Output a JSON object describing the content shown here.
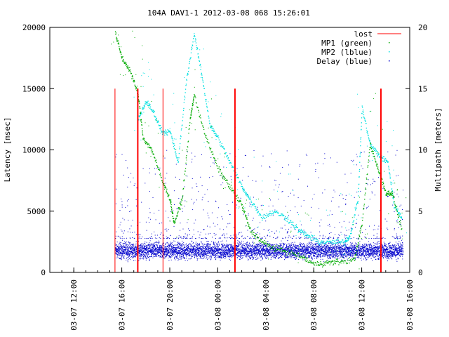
{
  "chart_data": {
    "type": "scatter",
    "title": "104A DAV1-1 2012-03-08 068 15:26:01",
    "ylabel": "Latency [msec]",
    "y2label": "Multipath [meters]",
    "ylim": [
      0,
      20000
    ],
    "y2lim": [
      0,
      20
    ],
    "yticks": [
      0,
      5000,
      10000,
      15000,
      20000
    ],
    "y2ticks": [
      0,
      5,
      10,
      15,
      20
    ],
    "xlim": [
      "2012-03-07 10:00",
      "2012-03-08 16:00"
    ],
    "xticks": [
      "03-07 12:00",
      "03-07 16:00",
      "03-07 20:00",
      "03-08 00:00",
      "03-08 04:00",
      "03-08 08:00",
      "03-08 12:00",
      "03-08 16:00"
    ],
    "legend_position": "top-right",
    "grid": false,
    "series": [
      {
        "name": "lost",
        "color": "#ff0000",
        "style": "impulse",
        "axis": "y",
        "x": [
          "2012-03-07 15:26",
          "2012-03-07 17:20",
          "2012-03-07 19:26",
          "2012-03-08 01:26",
          "2012-03-08 13:36"
        ],
        "y": [
          15000,
          15000,
          15000,
          15000,
          15000
        ]
      },
      {
        "name": "MP1 (green)",
        "color": "#00aa00",
        "style": "dots",
        "axis": "y2",
        "x": [
          "2012-03-07 15:26",
          "2012-03-07 16:00",
          "2012-03-07 16:40",
          "2012-03-07 17:20",
          "2012-03-07 17:45",
          "2012-03-07 18:30",
          "2012-03-07 19:20",
          "2012-03-07 20:00",
          "2012-03-07 20:20",
          "2012-03-07 21:00",
          "2012-03-07 21:40",
          "2012-03-07 22:00",
          "2012-03-07 23:00",
          "2012-03-08 00:00",
          "2012-03-08 01:00",
          "2012-03-08 02:00",
          "2012-03-08 02:40",
          "2012-03-08 03:40",
          "2012-03-08 04:40",
          "2012-03-08 05:40",
          "2012-03-08 07:00",
          "2012-03-08 08:00",
          "2012-03-08 09:00",
          "2012-03-08 10:00",
          "2012-03-08 11:20",
          "2012-03-08 12:00",
          "2012-03-08 12:40",
          "2012-03-08 13:20",
          "2012-03-08 14:00",
          "2012-03-08 14:30",
          "2012-03-08 15:20"
        ],
        "y": [
          19.5,
          17.5,
          16.5,
          14.5,
          11.0,
          10.0,
          7.5,
          6.0,
          4.0,
          6.0,
          12.5,
          14.5,
          11.0,
          8.5,
          7.0,
          5.5,
          3.5,
          2.5,
          2.0,
          1.8,
          1.3,
          0.7,
          0.8,
          0.9,
          1.0,
          4.0,
          10.5,
          8.5,
          6.5,
          6.5,
          3.5
        ]
      },
      {
        "name": "MP2 (lblue)",
        "color": "#00e0e0",
        "style": "dots",
        "axis": "y2",
        "x": [
          "2012-03-07 17:20",
          "2012-03-07 18:00",
          "2012-03-07 18:40",
          "2012-03-07 19:20",
          "2012-03-07 20:00",
          "2012-03-07 20:40",
          "2012-03-07 21:20",
          "2012-03-07 22:00",
          "2012-03-07 22:40",
          "2012-03-07 23:20",
          "2012-03-08 00:00",
          "2012-03-08 01:00",
          "2012-03-08 02:00",
          "2012-03-08 02:40",
          "2012-03-08 03:40",
          "2012-03-08 04:40",
          "2012-03-08 05:40",
          "2012-03-08 06:40",
          "2012-03-08 07:30",
          "2012-03-08 08:30",
          "2012-03-08 09:30",
          "2012-03-08 10:30",
          "2012-03-08 11:00",
          "2012-03-08 11:40",
          "2012-03-08 12:00",
          "2012-03-08 12:40",
          "2012-03-08 13:30",
          "2012-03-08 14:10",
          "2012-03-08 14:40",
          "2012-03-08 15:20"
        ],
        "y": [
          12.5,
          14.0,
          13.0,
          11.5,
          11.5,
          9.0,
          15.5,
          19.5,
          16.0,
          12.0,
          11.0,
          9.0,
          7.0,
          6.0,
          4.5,
          5.0,
          4.5,
          3.5,
          3.0,
          2.5,
          2.5,
          2.5,
          3.0,
          6.0,
          13.5,
          10.5,
          9.5,
          9.0,
          5.5,
          4.5
        ]
      },
      {
        "name": "Delay (blue)",
        "color": "#0000cc",
        "style": "dense-dots",
        "axis": "y",
        "x": [
          "2012-03-07 15:26",
          "2012-03-08 15:26"
        ],
        "y_band": [
          900,
          2800
        ],
        "y_center": 1800,
        "outliers_up_to": 10000
      }
    ]
  }
}
